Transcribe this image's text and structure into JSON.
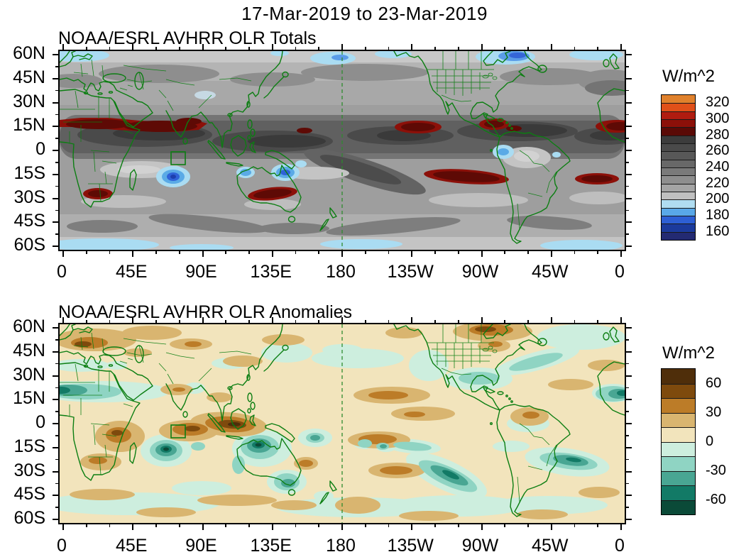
{
  "main_title": "17-Mar-2019 to 23-Mar-2019",
  "panels": [
    {
      "id": "totals",
      "title": "NOAA/ESRL AVHRR OLR Totals",
      "y_tick_labels": [
        "60N",
        "45N",
        "30N",
        "15N",
        "0",
        "15S",
        "30S",
        "45S",
        "60S"
      ],
      "x_tick_labels": [
        "0",
        "45E",
        "90E",
        "135E",
        "180",
        "135W",
        "90W",
        "45W",
        "0"
      ],
      "colorbar": {
        "units": "W/m^2",
        "tick_labels": [
          "320",
          "300",
          "280",
          "260",
          "240",
          "220",
          "200",
          "180",
          "160"
        ],
        "segment_colors_top_to_bottom": [
          "#e0812c",
          "#e05019",
          "#b01c10",
          "#8c1009",
          "#5a0a06",
          "#3c3c3c",
          "#4a4a4a",
          "#585858",
          "#686868",
          "#7a7a7a",
          "#8e8e8e",
          "#a4a4a4",
          "#c0c0c0",
          "#b0ddf1",
          "#59a8e8",
          "#2d5fd4",
          "#1b3a9c",
          "#232a72"
        ]
      }
    },
    {
      "id": "anomalies",
      "title": "NOAA/ESRL AVHRR OLR Anomalies",
      "y_tick_labels": [
        "60N",
        "45N",
        "30N",
        "15N",
        "0",
        "15S",
        "30S",
        "45S",
        "60S"
      ],
      "x_tick_labels": [
        "0",
        "45E",
        "90E",
        "135E",
        "180",
        "135W",
        "90W",
        "45W",
        "0"
      ],
      "colorbar": {
        "units": "W/m^2",
        "tick_labels": [
          "60",
          "30",
          "0",
          "-30",
          "-60"
        ],
        "segment_colors_top_to_bottom": [
          "#4f2e0a",
          "#7e4a0d",
          "#bc7c28",
          "#d9b570",
          "#f2e4bc",
          "#cdeede",
          "#8fd4c3",
          "#49a693",
          "#127a66",
          "#0b4a38"
        ]
      }
    }
  ],
  "chart_data": [
    {
      "type": "heatmap",
      "subtype": "filled_contour_world_map",
      "title": "NOAA/ESRL AVHRR OLR Totals",
      "period": "17-Mar-2019 to 23-Mar-2019",
      "units": "W/m^2",
      "projection": "equirectangular cylindrical, longitude 0E eastward to 360E, latitude 60N to 60S",
      "x_axis": {
        "tick_labels": [
          "0",
          "45E",
          "90E",
          "135E",
          "180",
          "135W",
          "90W",
          "45W",
          "0"
        ],
        "major_interval_deg": 45,
        "minor_interval_deg": 15
      },
      "y_axis": {
        "tick_labels": [
          "60N",
          "45N",
          "30N",
          "15N",
          "0",
          "15S",
          "30S",
          "45S",
          "60S"
        ],
        "major_interval_deg": 15,
        "minor_interval_deg": 7.5
      },
      "contour_interval": 10,
      "contour_levels": [
        160,
        170,
        180,
        190,
        200,
        210,
        220,
        230,
        240,
        250,
        260,
        270,
        280,
        290,
        300,
        310,
        320
      ],
      "colorbar_tick_labels": [
        320,
        300,
        280,
        260,
        240,
        220,
        200,
        180,
        160
      ],
      "palette_top_to_bottom": [
        "#e0812c",
        "#e05019",
        "#b01c10",
        "#8c1009",
        "#5a0a06",
        "#3c3c3c",
        "#4a4a4a",
        "#585858",
        "#686868",
        "#7a7a7a",
        "#8e8e8e",
        "#a4a4a4",
        "#c0c0c0",
        "#b0ddf1",
        "#59a8e8",
        "#2d5fd4",
        "#1b3a9c",
        "#232a72"
      ],
      "annotations": [
        "green dashed meridian line at 180",
        "green index box over central Indian Ocean near 80-90E, 2-10S"
      ],
      "notable_features": [
        "High OLR (>280 W/m^2, dark red) band across Sahel, Arabia and India near 10-20N, with patches over the east Pacific, Caribbean, central South Pacific, South Atlantic, southern Africa and central Australia",
        "Low OLR (blue) convective cold-cloud centers over the tropical south Indian Ocean, Timor/New Guinea region and northwest South America",
        "Dark gray ITCZ cloud band circling the deep tropics; light gray and pale blue at high latitudes, strong blue low OLR over Hudson Bay region"
      ]
    },
    {
      "type": "heatmap",
      "subtype": "filled_contour_world_map",
      "title": "NOAA/ESRL AVHRR OLR Anomalies",
      "period": "17-Mar-2019 to 23-Mar-2019",
      "units": "W/m^2",
      "projection": "equirectangular cylindrical, longitude 0E eastward to 360E, latitude 60N to 60S",
      "x_axis": {
        "tick_labels": [
          "0",
          "45E",
          "90E",
          "135E",
          "180",
          "135W",
          "90W",
          "45W",
          "0"
        ],
        "major_interval_deg": 45,
        "minor_interval_deg": 15
      },
      "y_axis": {
        "tick_labels": [
          "60N",
          "45N",
          "30N",
          "15N",
          "0",
          "15S",
          "30S",
          "45S",
          "60S"
        ],
        "major_interval_deg": 15,
        "minor_interval_deg": 7.5
      },
      "contour_interval": 15,
      "contour_levels": [
        -60,
        -45,
        -30,
        -15,
        0,
        15,
        30,
        45,
        60
      ],
      "colorbar_tick_labels": [
        60,
        30,
        0,
        -30,
        -60
      ],
      "palette_top_to_bottom": [
        "#4f2e0a",
        "#7e4a0d",
        "#bc7c28",
        "#d9b570",
        "#f2e4bc",
        "#cdeede",
        "#8fd4c3",
        "#49a693",
        "#127a66",
        "#0b4a38"
      ],
      "annotations": [
        "green dashed meridian line at 180",
        "green index box over central Indian Ocean near 80-90E, 2-10S"
      ],
      "notable_features": [
        "Negative OLR anomalies (teal, enhanced convection) over the southwest Indian Ocean, Timor Sea / northern Australia, southeast Pacific, South Atlantic, Gulf of Mexico and off West Africa",
        "Positive OLR anomalies (brown, suppressed convection) over Sumatra-Borneo, the central Indian Ocean, East/southern Africa, the central North and South Pacific, northwest Canada and eastern Europe"
      ]
    }
  ]
}
